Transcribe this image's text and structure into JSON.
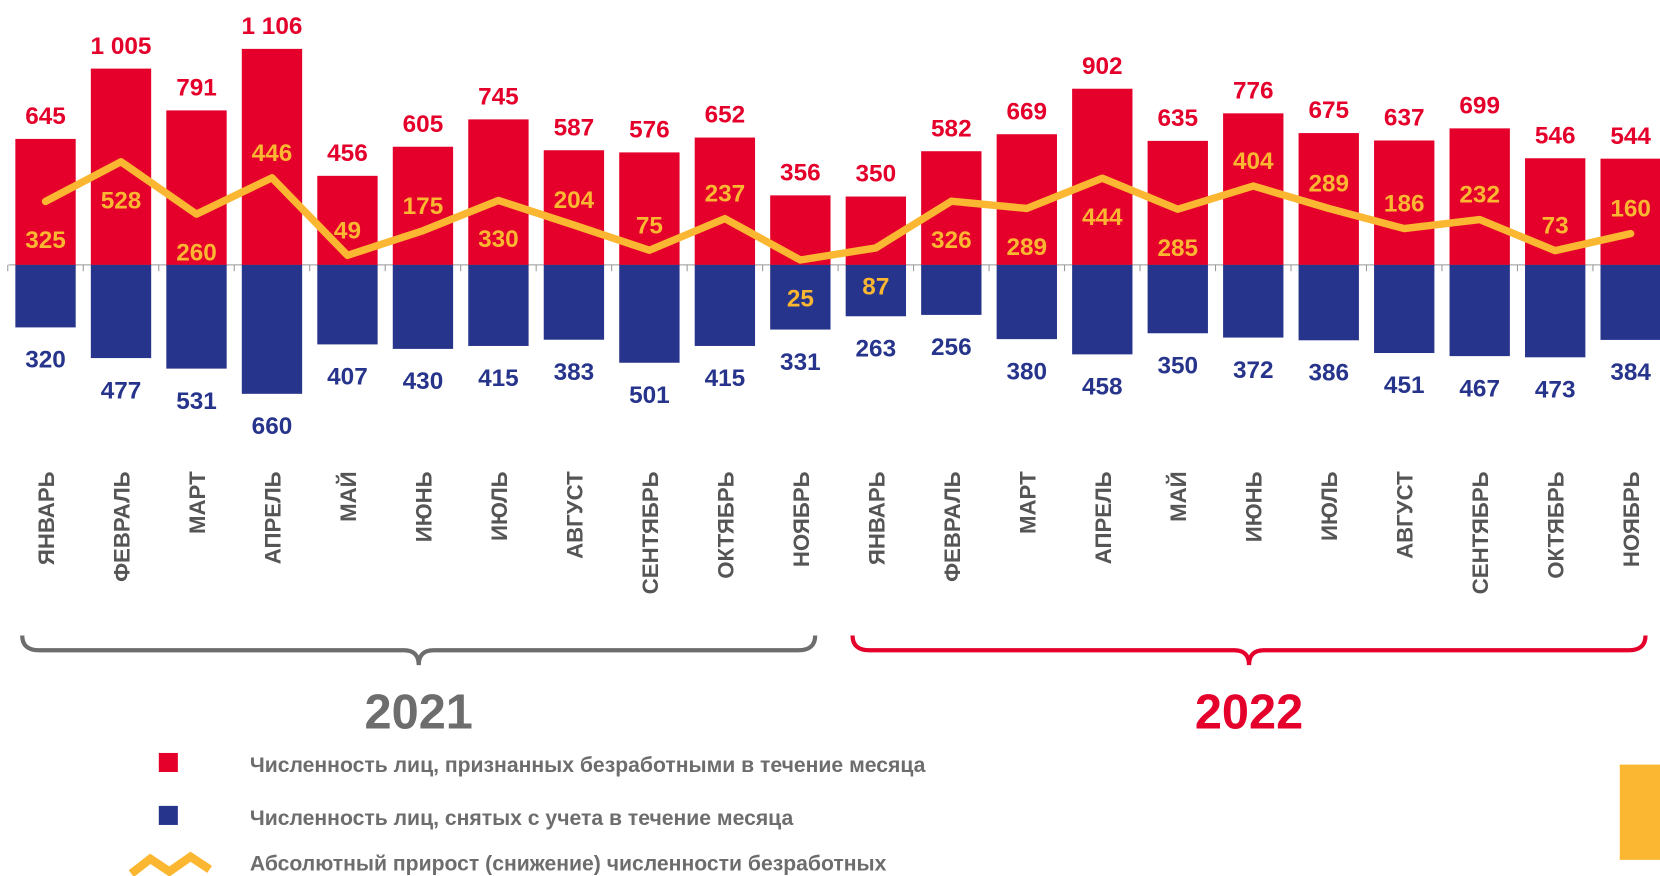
{
  "chart_data": {
    "type": "bar",
    "periods": [
      {
        "name": "2021",
        "color": "#6d6d6d",
        "categories": [
          "ЯНВАРЬ",
          "ФЕВРАЛЬ",
          "МАРТ",
          "АПРЕЛЬ",
          "МАЙ",
          "ИЮНЬ",
          "ИЮЛЬ",
          "АВГУСТ",
          "СЕНТЯБРЬ",
          "ОКТЯБРЬ",
          "НОЯБРЬ"
        ]
      },
      {
        "name": "2022",
        "color": "#e4002b",
        "categories": [
          "ЯНВАРЬ",
          "ФЕВРАЛЬ",
          "МАРТ",
          "АПРЕЛЬ",
          "МАЙ",
          "ИЮНЬ",
          "ИЮЛЬ",
          "АВГУСТ",
          "СЕНТЯБРЬ",
          "ОКТЯБРЬ",
          "НОЯБРЬ"
        ]
      }
    ],
    "series": [
      {
        "name": "Численность лиц, признанных безработными в течение месяца",
        "type": "bar",
        "color": "#e4002b",
        "values": [
          645,
          1005,
          791,
          1106,
          456,
          605,
          745,
          587,
          576,
          652,
          356,
          350,
          582,
          669,
          902,
          635,
          776,
          675,
          637,
          699,
          546,
          544
        ],
        "value_labels": [
          "645",
          "1 005",
          "791",
          "1 106",
          "456",
          "605",
          "745",
          "587",
          "576",
          "652",
          "356",
          "350",
          "582",
          "669",
          "902",
          "635",
          "776",
          "675",
          "637",
          "699",
          "546",
          "544"
        ]
      },
      {
        "name": "Численность лиц, снятых с учета в течение месяца",
        "type": "bar",
        "color": "#27348b",
        "values": [
          320,
          477,
          531,
          660,
          407,
          430,
          415,
          383,
          501,
          415,
          331,
          263,
          256,
          380,
          458,
          350,
          372,
          386,
          451,
          467,
          473,
          384
        ]
      },
      {
        "name": "Абсолютный прирост (снижение) численности безработных",
        "type": "line",
        "color": "#fbb731",
        "values": [
          325,
          528,
          260,
          446,
          49,
          175,
          330,
          204,
          75,
          237,
          25,
          87,
          326,
          289,
          444,
          285,
          404,
          289,
          186,
          232,
          73,
          160
        ]
      }
    ]
  }
}
